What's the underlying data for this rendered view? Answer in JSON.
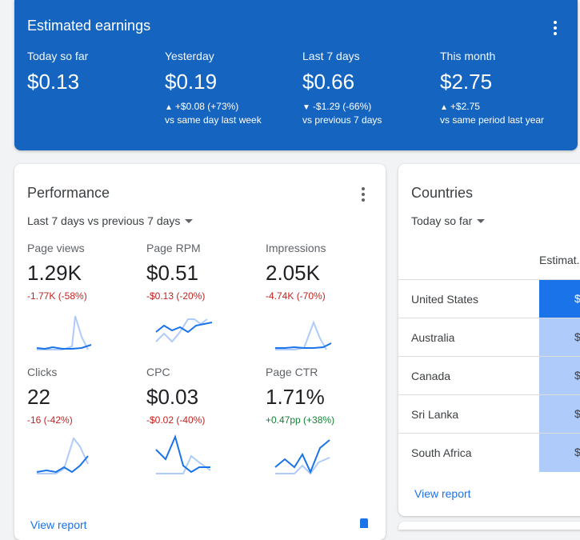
{
  "earnings": {
    "title": "Estimated earnings",
    "metrics": [
      {
        "label": "Today so far",
        "value": "$0.13",
        "delta": "",
        "arrow": "",
        "comparison": ""
      },
      {
        "label": "Yesterday",
        "value": "$0.19",
        "delta": "+$0.08 (+73%)",
        "arrow": "▲",
        "comparison": "vs same day last week"
      },
      {
        "label": "Last 7 days",
        "value": "$0.66",
        "delta": "-$1.29 (-66%)",
        "arrow": "▼",
        "comparison": "vs previous 7 days"
      },
      {
        "label": "This month",
        "value": "$2.75",
        "delta": "+$2.75",
        "arrow": "▲",
        "comparison": "vs same period last year"
      }
    ]
  },
  "performance": {
    "title": "Performance",
    "range": "Last 7 days vs previous 7 days",
    "view_report": "View report",
    "tiles": [
      {
        "label": "Page views",
        "value": "1.29K",
        "delta": "-1.77K (-58%)",
        "trend": "neg"
      },
      {
        "label": "Page RPM",
        "value": "$0.51",
        "delta": "-$0.13 (-20%)",
        "trend": "neg"
      },
      {
        "label": "Impressions",
        "value": "2.05K",
        "delta": "-4.74K (-70%)",
        "trend": "neg"
      },
      {
        "label": "Clicks",
        "value": "22",
        "delta": "-16 (-42%)",
        "trend": "neg"
      },
      {
        "label": "CPC",
        "value": "$0.03",
        "delta": "-$0.02 (-40%)",
        "trend": "neg"
      },
      {
        "label": "Page CTR",
        "value": "1.71%",
        "delta": "+0.47pp (+38%)",
        "trend": "pos"
      }
    ]
  },
  "countries": {
    "title": "Countries",
    "range": "Today so far",
    "column_header": "Estimat...",
    "rows": [
      {
        "name": "United States",
        "value": "$"
      },
      {
        "name": "Australia",
        "value": "$"
      },
      {
        "name": "Canada",
        "value": "$"
      },
      {
        "name": "Sri Lanka",
        "value": "$"
      },
      {
        "name": "South Africa",
        "value": "$"
      }
    ],
    "view_report": "View report"
  },
  "colors": {
    "brand": "#1565c0",
    "accent": "#1a73e8",
    "light_series": "#aecbfa",
    "negative": "#c5221f",
    "positive": "#188038"
  }
}
